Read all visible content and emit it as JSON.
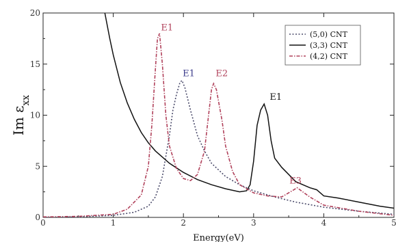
{
  "chart_data": {
    "type": "line",
    "xlabel": "Energy(eV)",
    "ylabel": "Im ε_xx",
    "ylabel_main": "Im ε",
    "ylabel_sub": "xx",
    "xlim": [
      0,
      5
    ],
    "ylim": [
      0,
      20
    ],
    "xticks": [
      0,
      1,
      2,
      3,
      4,
      5
    ],
    "yticks": [
      0,
      5,
      10,
      15,
      20
    ],
    "grid": false,
    "legend_position": "top-right",
    "series": [
      {
        "name": "(5,0) CNT",
        "style": "dotted",
        "color": "#4a4a6a",
        "x": [
          0.0,
          0.5,
          1.0,
          1.3,
          1.5,
          1.6,
          1.7,
          1.8,
          1.85,
          1.9,
          1.95,
          1.98,
          2.02,
          2.1,
          2.2,
          2.3,
          2.4,
          2.6,
          2.8,
          3.0,
          3.3,
          3.6,
          4.0,
          4.5,
          5.0
        ],
        "y": [
          0.0,
          0.05,
          0.2,
          0.5,
          1.1,
          2.0,
          4.0,
          8.0,
          10.5,
          12.0,
          13.2,
          13.4,
          12.7,
          10.5,
          8.0,
          6.5,
          5.3,
          4.0,
          3.2,
          2.6,
          2.0,
          1.5,
          1.0,
          0.6,
          0.3
        ]
      },
      {
        "name": "(3,3) CNT",
        "style": "solid",
        "color": "#111111",
        "x": [
          0.88,
          0.95,
          1.0,
          1.1,
          1.2,
          1.3,
          1.4,
          1.5,
          1.6,
          1.8,
          2.0,
          2.2,
          2.4,
          2.6,
          2.8,
          2.9,
          2.95,
          3.0,
          3.05,
          3.1,
          3.15,
          3.2,
          3.25,
          3.3,
          3.4,
          3.5,
          3.6,
          3.8,
          3.9,
          4.0,
          4.2,
          4.5,
          4.8,
          5.0
        ],
        "y": [
          20.0,
          17.5,
          15.9,
          13.2,
          11.2,
          9.6,
          8.3,
          7.3,
          6.5,
          5.3,
          4.4,
          3.7,
          3.2,
          2.8,
          2.5,
          2.6,
          3.2,
          5.5,
          9.0,
          10.5,
          11.1,
          10.0,
          7.5,
          5.8,
          4.9,
          4.2,
          3.5,
          2.9,
          2.7,
          2.1,
          1.9,
          1.5,
          1.1,
          0.9
        ]
      },
      {
        "name": "(4,2) CNT",
        "style": "dashdot",
        "color": "#b0405a",
        "x": [
          0.0,
          0.5,
          1.0,
          1.2,
          1.4,
          1.5,
          1.55,
          1.6,
          1.63,
          1.66,
          1.7,
          1.75,
          1.8,
          1.9,
          2.0,
          2.1,
          2.2,
          2.3,
          2.35,
          2.4,
          2.43,
          2.47,
          2.55,
          2.6,
          2.7,
          2.8,
          3.0,
          3.2,
          3.4,
          3.55,
          3.62,
          3.7,
          3.8,
          3.9,
          4.0,
          4.5,
          5.0
        ],
        "y": [
          0.05,
          0.1,
          0.3,
          0.8,
          2.2,
          5.0,
          9.0,
          14.5,
          17.5,
          18.0,
          15.0,
          10.0,
          7.0,
          4.8,
          3.8,
          3.6,
          4.2,
          6.5,
          9.5,
          12.5,
          13.1,
          12.5,
          9.5,
          7.0,
          4.5,
          3.2,
          2.4,
          2.1,
          2.0,
          2.6,
          2.9,
          2.5,
          2.0,
          1.6,
          1.2,
          0.6,
          0.2
        ]
      }
    ],
    "annotations": [
      {
        "text": "E1",
        "x": 1.67,
        "y": 17.9,
        "color": "#b0405a"
      },
      {
        "text": "E1",
        "x": 1.98,
        "y": 13.4,
        "color": "#3a3a8a"
      },
      {
        "text": "E2",
        "x": 2.45,
        "y": 13.4,
        "color": "#b0405a"
      },
      {
        "text": "E1",
        "x": 3.22,
        "y": 11.1,
        "color": "#111111"
      },
      {
        "text": "E3",
        "x": 3.5,
        "y": 2.9,
        "color": "#b0405a"
      }
    ]
  }
}
